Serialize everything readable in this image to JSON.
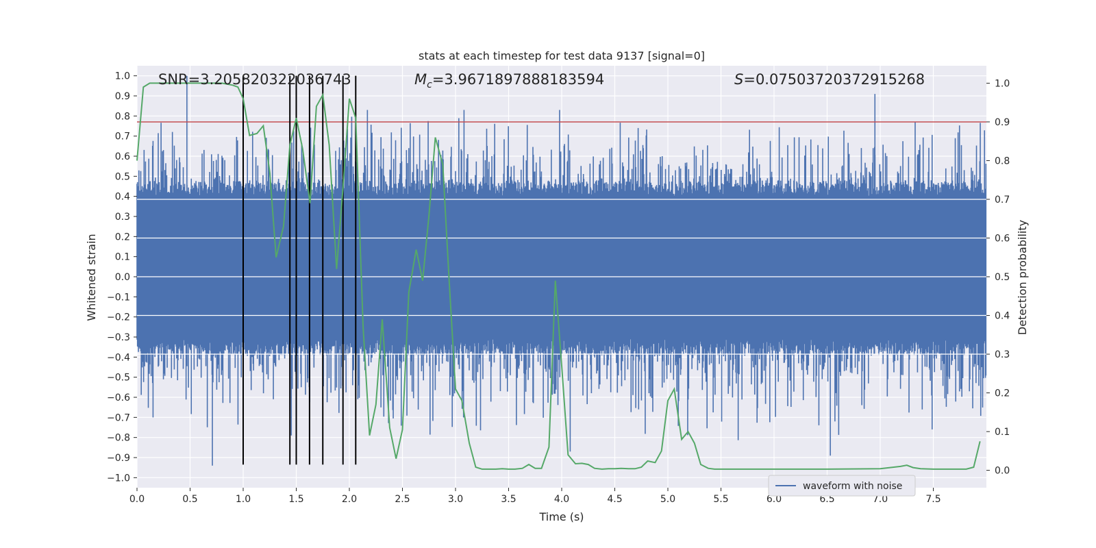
{
  "chart_data": {
    "type": "line",
    "title": "stats at each timestep for test data 9137 [signal=0]",
    "xlabel": "Time (s)",
    "ylabel": "Whitened strain",
    "y2label": "Detection probability",
    "xlim": [
      0.0,
      8.0
    ],
    "ylim": [
      -1.05,
      1.05
    ],
    "y2lim": [
      -0.045,
      1.045
    ],
    "x_ticks": [
      "0.0",
      "0.5",
      "1.0",
      "1.5",
      "2.0",
      "2.5",
      "3.0",
      "3.5",
      "4.0",
      "4.5",
      "5.0",
      "5.5",
      "6.0",
      "6.5",
      "7.0",
      "7.5"
    ],
    "y_ticks": [
      "1.0",
      "0.9",
      "0.8",
      "0.7",
      "0.6",
      "0.5",
      "0.4",
      "0.3",
      "0.2",
      "0.1",
      "0.0",
      "−0.1",
      "−0.2",
      "−0.3",
      "−0.4",
      "−0.5",
      "−0.6",
      "−0.7",
      "−0.8",
      "−0.9",
      "−1.0"
    ],
    "y2_ticks": [
      "1.0",
      "0.9",
      "0.8",
      "0.7",
      "0.6",
      "0.5",
      "0.4",
      "0.3",
      "0.2",
      "0.1",
      "0.0"
    ],
    "stats": {
      "snr": "SNR=3.205820322036743",
      "mc_symbol": "M",
      "mc_sub": "c",
      "mc_value": "=3.9671897888183594",
      "s_symbol": "S",
      "s_value": "=0.07503720372915268"
    },
    "threshold": 0.9,
    "detection_markers": [
      1.0,
      1.44,
      1.5,
      1.625,
      1.75,
      1.94,
      2.06
    ],
    "waveform": {
      "name": "waveform with noise",
      "color": "#4c72b0",
      "band_typical": [
        -0.33,
        0.42
      ],
      "spike_range": [
        -0.94,
        1.0
      ],
      "peaks": [
        {
          "x": 0.47,
          "y": 1.0
        },
        {
          "x": 1.0,
          "y": 0.82
        },
        {
          "x": 2.17,
          "y": 0.83
        },
        {
          "x": 3.08,
          "y": 0.83
        },
        {
          "x": 3.98,
          "y": 0.83
        },
        {
          "x": 6.95,
          "y": 0.91
        },
        {
          "x": 0.71,
          "y": -0.94
        },
        {
          "x": 6.53,
          "y": -0.89
        },
        {
          "x": 4.08,
          "y": -0.87
        }
      ]
    },
    "probability": {
      "name": "detection probability",
      "color": "#55a868",
      "x": [
        0.0,
        0.06,
        0.12,
        0.2,
        0.3,
        0.5,
        0.7,
        0.8,
        0.9,
        0.95,
        1.0,
        1.06,
        1.13,
        1.19,
        1.25,
        1.31,
        1.38,
        1.44,
        1.5,
        1.56,
        1.63,
        1.69,
        1.75,
        1.81,
        1.88,
        1.94,
        2.0,
        2.06,
        2.13,
        2.19,
        2.25,
        2.31,
        2.38,
        2.44,
        2.5,
        2.56,
        2.63,
        2.69,
        2.75,
        2.81,
        2.88,
        2.94,
        3.0,
        3.06,
        3.13,
        3.19,
        3.25,
        3.31,
        3.38,
        3.44,
        3.5,
        3.56,
        3.63,
        3.69,
        3.75,
        3.81,
        3.88,
        3.94,
        4.0,
        4.06,
        4.13,
        4.19,
        4.25,
        4.31,
        4.38,
        4.44,
        4.5,
        4.56,
        4.63,
        4.69,
        4.75,
        4.81,
        4.88,
        4.94,
        5.0,
        5.06,
        5.13,
        5.19,
        5.25,
        5.31,
        5.38,
        5.44,
        5.5,
        6.0,
        6.5,
        7.0,
        7.19,
        7.25,
        7.31,
        7.38,
        7.5,
        7.81,
        7.88,
        7.94
      ],
      "y": [
        0.8,
        0.99,
        1.0,
        1.0,
        1.0,
        1.0,
        1.0,
        1.0,
        0.995,
        0.99,
        0.96,
        0.865,
        0.87,
        0.89,
        0.77,
        0.55,
        0.63,
        0.84,
        0.91,
        0.83,
        0.69,
        0.94,
        0.97,
        0.84,
        0.52,
        0.73,
        0.96,
        0.91,
        0.37,
        0.09,
        0.17,
        0.39,
        0.11,
        0.03,
        0.105,
        0.46,
        0.57,
        0.49,
        0.66,
        0.86,
        0.79,
        0.49,
        0.21,
        0.18,
        0.07,
        0.008,
        0.003,
        0.003,
        0.003,
        0.004,
        0.003,
        0.003,
        0.005,
        0.015,
        0.005,
        0.005,
        0.06,
        0.49,
        0.27,
        0.04,
        0.017,
        0.018,
        0.015,
        0.005,
        0.003,
        0.004,
        0.004,
        0.005,
        0.004,
        0.004,
        0.008,
        0.024,
        0.02,
        0.05,
        0.18,
        0.21,
        0.08,
        0.1,
        0.07,
        0.015,
        0.005,
        0.003,
        0.003,
        0.003,
        0.003,
        0.004,
        0.01,
        0.013,
        0.007,
        0.004,
        0.003,
        0.003,
        0.008,
        0.075
      ]
    }
  }
}
